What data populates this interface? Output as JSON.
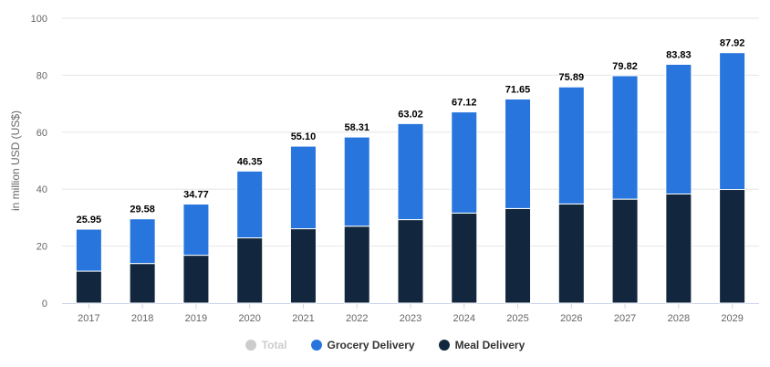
{
  "chart_data": {
    "type": "bar",
    "stacked": true,
    "title": "",
    "xlabel": "",
    "ylabel": "in million USD (US$)",
    "ylim": [
      0,
      100
    ],
    "yticks": [
      0,
      20,
      40,
      60,
      80,
      100
    ],
    "grid": true,
    "legend_position": "bottom",
    "categories": [
      "2017",
      "2018",
      "2019",
      "2020",
      "2021",
      "2022",
      "2023",
      "2024",
      "2025",
      "2026",
      "2027",
      "2028",
      "2029"
    ],
    "totals": [
      25.95,
      29.58,
      34.77,
      46.35,
      55.1,
      58.31,
      63.02,
      67.12,
      71.65,
      75.89,
      79.82,
      83.83,
      87.92
    ],
    "total_labels": [
      "25.95",
      "29.58",
      "34.77",
      "46.35",
      "55.10",
      "58.31",
      "63.02",
      "67.12",
      "71.65",
      "75.89",
      "79.82",
      "83.83",
      "87.92"
    ],
    "series": [
      {
        "name": "Meal Delivery",
        "color": "#12273d",
        "values": [
          11.2,
          13.9,
          16.8,
          22.9,
          26.1,
          27.0,
          29.3,
          31.6,
          33.2,
          34.8,
          36.5,
          38.3,
          39.9
        ]
      },
      {
        "name": "Grocery Delivery",
        "color": "#2876dd",
        "values": [
          14.75,
          15.68,
          17.97,
          23.45,
          29.0,
          31.31,
          33.72,
          35.52,
          38.45,
          41.09,
          43.32,
          45.53,
          48.02
        ]
      }
    ],
    "legend": [
      {
        "name": "Total",
        "color": "#cccccc",
        "hidden": true
      },
      {
        "name": "Grocery Delivery",
        "color": "#2876dd"
      },
      {
        "name": "Meal Delivery",
        "color": "#12273d"
      }
    ]
  }
}
